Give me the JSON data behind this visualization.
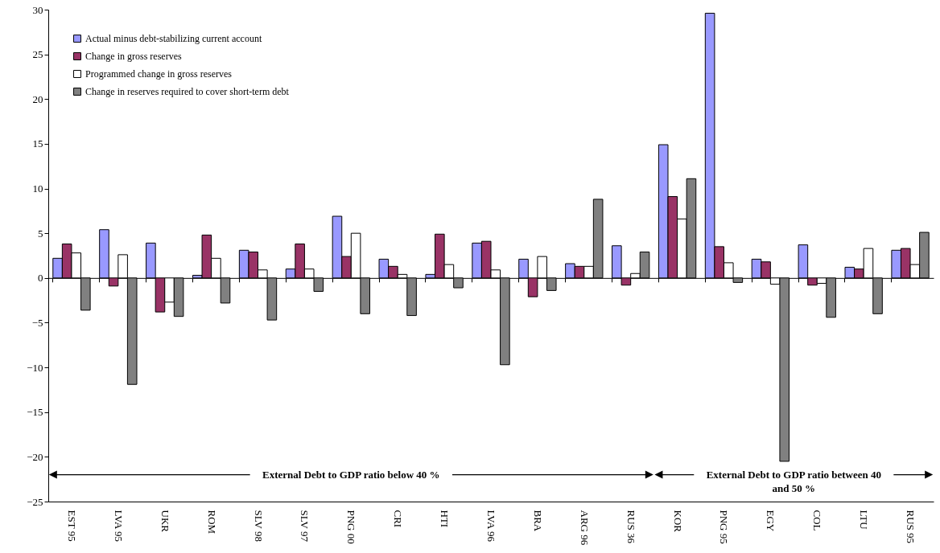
{
  "chart_data": {
    "type": "bar",
    "categories": [
      "EST 95",
      "LVA 95",
      "UKR",
      "ROM",
      "SLV 98",
      "SLV 97",
      "PNG 00",
      "CRI",
      "HTI",
      "LVA 96",
      "BRA",
      "ARG 96",
      "RUS 36",
      "KOR",
      "PNG 95",
      "EGY",
      "COL",
      "LTU",
      "RUS 95"
    ],
    "series": [
      {
        "name": "Actual minus debt-stabilizing current account",
        "color": "#9999ff",
        "values": [
          2.2,
          5.4,
          3.9,
          0.3,
          3.1,
          1.0,
          6.9,
          2.1,
          0.4,
          3.9,
          2.1,
          1.6,
          3.6,
          14.9,
          29.6,
          2.1,
          3.7,
          1.2,
          3.1
        ]
      },
      {
        "name": "Change in gross reserves",
        "color": "#993366",
        "values": [
          3.8,
          -0.9,
          -3.8,
          4.8,
          2.9,
          3.8,
          2.4,
          1.3,
          4.9,
          4.1,
          -2.1,
          1.3,
          -0.8,
          9.1,
          3.5,
          1.8,
          -0.8,
          1.0,
          3.3
        ]
      },
      {
        "name": "Programmed change in gross reserves",
        "color": "#ffffff",
        "values": [
          2.8,
          2.6,
          -2.7,
          2.2,
          0.9,
          1.0,
          5.0,
          0.4,
          1.5,
          0.9,
          2.4,
          1.3,
          0.5,
          6.6,
          1.7,
          -0.7,
          -0.6,
          3.3,
          1.5
        ]
      },
      {
        "name": "Change in reserves required to cover short-term debt",
        "color": "#808080",
        "values": [
          -3.6,
          -11.9,
          -4.3,
          -2.8,
          -4.7,
          -1.5,
          -4.0,
          -4.2,
          -1.1,
          -9.7,
          -1.4,
          8.8,
          2.9,
          11.1,
          -0.5,
          -20.5,
          -4.4,
          -4.0,
          5.1
        ]
      }
    ],
    "ylim": [
      -25,
      30
    ],
    "yticks": [
      -25,
      -20,
      -15,
      -10,
      -5,
      0,
      5,
      10,
      15,
      20,
      25,
      30
    ],
    "legend": "top left",
    "annotations": [
      "External Debt to GDP ratio below 40 %",
      "External Debt to GDP ratio between 40 and 50 %"
    ]
  }
}
